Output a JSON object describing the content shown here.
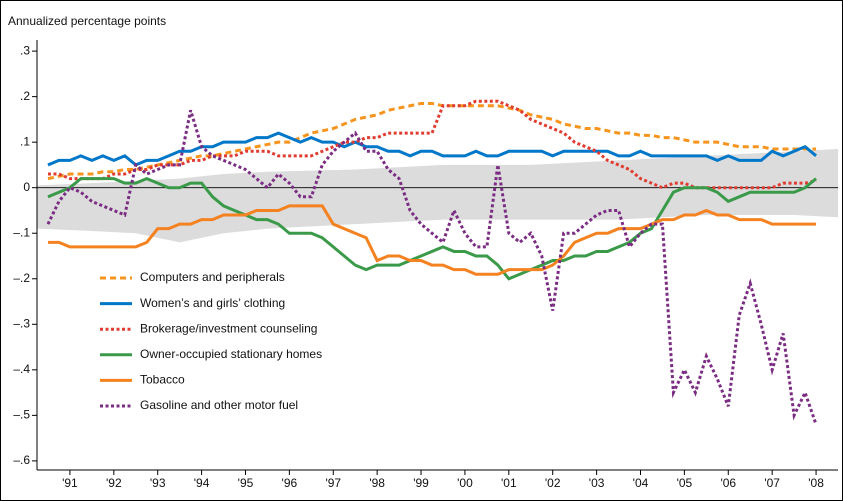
{
  "chart_data": {
    "type": "line",
    "y_label": "Annualized percentage points",
    "x": [
      1991,
      1991.25,
      1991.5,
      1991.75,
      1992,
      1992.25,
      1992.5,
      1992.75,
      1993,
      1993.25,
      1993.5,
      1993.75,
      1994,
      1994.25,
      1994.5,
      1994.75,
      1995,
      1995.25,
      1995.5,
      1995.75,
      1996,
      1996.25,
      1996.5,
      1996.75,
      1997,
      1997.25,
      1997.5,
      1997.75,
      1998,
      1998.25,
      1998.5,
      1998.75,
      1999,
      1999.25,
      1999.5,
      1999.75,
      2000,
      2000.25,
      2000.5,
      2000.75,
      2001,
      2001.25,
      2001.5,
      2001.75,
      2002,
      2002.25,
      2002.5,
      2002.75,
      2003,
      2003.25,
      2003.5,
      2003.75,
      2004,
      2004.25,
      2004.5,
      2004.75,
      2005,
      2005.25,
      2005.5,
      2005.75,
      2006,
      2006.25,
      2006.5,
      2006.75,
      2007,
      2007.25,
      2007.5,
      2007.75,
      2008,
      2008.25,
      2008.5
    ],
    "series": [
      {
        "name": "Computers and peripherals",
        "color": "#f7941d",
        "style": "dashed",
        "values": [
          0.02,
          0.025,
          0.03,
          0.03,
          0.03,
          0.035,
          0.035,
          0.04,
          0.04,
          0.045,
          0.05,
          0.055,
          0.06,
          0.065,
          0.07,
          0.07,
          0.075,
          0.08,
          0.085,
          0.09,
          0.095,
          0.1,
          0.1,
          0.11,
          0.12,
          0.125,
          0.13,
          0.14,
          0.15,
          0.155,
          0.16,
          0.17,
          0.175,
          0.18,
          0.185,
          0.185,
          0.18,
          0.18,
          0.18,
          0.18,
          0.18,
          0.18,
          0.175,
          0.17,
          0.16,
          0.155,
          0.15,
          0.14,
          0.135,
          0.13,
          0.13,
          0.125,
          0.12,
          0.12,
          0.115,
          0.115,
          0.11,
          0.11,
          0.105,
          0.1,
          0.1,
          0.1,
          0.095,
          0.09,
          0.09,
          0.09,
          0.085,
          0.085,
          0.085,
          0.085,
          0.085
        ]
      },
      {
        "name": "Women’s and girls’ clothing",
        "color": "#0077c8",
        "style": "solid",
        "values": [
          0.05,
          0.06,
          0.06,
          0.07,
          0.06,
          0.07,
          0.06,
          0.07,
          0.05,
          0.06,
          0.06,
          0.07,
          0.08,
          0.08,
          0.09,
          0.09,
          0.1,
          0.1,
          0.1,
          0.11,
          0.11,
          0.12,
          0.11,
          0.1,
          0.11,
          0.1,
          0.1,
          0.09,
          0.1,
          0.09,
          0.09,
          0.08,
          0.08,
          0.07,
          0.08,
          0.08,
          0.07,
          0.07,
          0.07,
          0.08,
          0.07,
          0.07,
          0.08,
          0.08,
          0.08,
          0.08,
          0.07,
          0.08,
          0.08,
          0.08,
          0.08,
          0.08,
          0.07,
          0.07,
          0.08,
          0.07,
          0.07,
          0.07,
          0.07,
          0.07,
          0.07,
          0.06,
          0.07,
          0.06,
          0.06,
          0.06,
          0.08,
          0.07,
          0.08,
          0.09,
          0.07
        ]
      },
      {
        "name": "Brokerage/investment counseling",
        "color": "#e03c31",
        "style": "dotted",
        "values": [
          0.03,
          0.03,
          0.02,
          0.02,
          0.02,
          0.02,
          0.03,
          0.03,
          0.04,
          0.04,
          0.05,
          0.05,
          0.05,
          0.06,
          0.06,
          0.07,
          0.07,
          0.07,
          0.08,
          0.08,
          0.08,
          0.07,
          0.07,
          0.07,
          0.07,
          0.08,
          0.09,
          0.1,
          0.1,
          0.11,
          0.11,
          0.12,
          0.12,
          0.12,
          0.12,
          0.12,
          0.18,
          0.18,
          0.18,
          0.19,
          0.19,
          0.19,
          0.18,
          0.17,
          0.15,
          0.14,
          0.13,
          0.12,
          0.1,
          0.09,
          0.08,
          0.06,
          0.05,
          0.04,
          0.02,
          0.01,
          0,
          0.01,
          0.01,
          0,
          0,
          0,
          0,
          0,
          0,
          0,
          0,
          0.01,
          0.01,
          0.01,
          0.015
        ]
      },
      {
        "name": "Owner-occupied stationary homes",
        "color": "#3a9a4a",
        "style": "solid",
        "values": [
          -0.02,
          -0.01,
          0,
          0.02,
          0.02,
          0.02,
          0.02,
          0.01,
          0.01,
          0.02,
          0.01,
          0,
          0,
          0.01,
          0.01,
          -0.02,
          -0.04,
          -0.05,
          -0.06,
          -0.07,
          -0.07,
          -0.08,
          -0.1,
          -0.1,
          -0.1,
          -0.11,
          -0.13,
          -0.15,
          -0.17,
          -0.18,
          -0.17,
          -0.17,
          -0.17,
          -0.16,
          -0.15,
          -0.14,
          -0.13,
          -0.14,
          -0.14,
          -0.15,
          -0.15,
          -0.17,
          -0.2,
          -0.19,
          -0.18,
          -0.17,
          -0.16,
          -0.16,
          -0.15,
          -0.15,
          -0.14,
          -0.14,
          -0.13,
          -0.12,
          -0.1,
          -0.09,
          -0.05,
          -0.01,
          0,
          0,
          0,
          -0.01,
          -0.03,
          -0.02,
          -0.01,
          -0.01,
          -0.01,
          -0.01,
          -0.01,
          0,
          0.02
        ]
      },
      {
        "name": "Tobacco",
        "color": "#f58220",
        "style": "solid",
        "values": [
          -0.12,
          -0.12,
          -0.13,
          -0.13,
          -0.13,
          -0.13,
          -0.13,
          -0.13,
          -0.13,
          -0.12,
          -0.09,
          -0.09,
          -0.08,
          -0.08,
          -0.07,
          -0.07,
          -0.06,
          -0.06,
          -0.06,
          -0.05,
          -0.05,
          -0.05,
          -0.04,
          -0.04,
          -0.04,
          -0.04,
          -0.08,
          -0.09,
          -0.1,
          -0.11,
          -0.16,
          -0.15,
          -0.15,
          -0.16,
          -0.16,
          -0.17,
          -0.17,
          -0.18,
          -0.18,
          -0.19,
          -0.19,
          -0.19,
          -0.18,
          -0.18,
          -0.18,
          -0.18,
          -0.17,
          -0.15,
          -0.12,
          -0.11,
          -0.1,
          -0.1,
          -0.09,
          -0.09,
          -0.09,
          -0.08,
          -0.07,
          -0.07,
          -0.06,
          -0.06,
          -0.05,
          -0.06,
          -0.06,
          -0.07,
          -0.07,
          -0.07,
          -0.08,
          -0.08,
          -0.08,
          -0.08,
          -0.08
        ]
      },
      {
        "name": "Gasoline and other motor fuel",
        "color": "#7b2c83",
        "style": "dotted",
        "values": [
          -0.08,
          -0.03,
          0,
          -0.01,
          -0.03,
          -0.04,
          -0.05,
          -0.06,
          0.05,
          0.03,
          0.04,
          0.05,
          0.05,
          0.17,
          0.09,
          0.07,
          0.06,
          0.05,
          0.04,
          0.02,
          0,
          0.03,
          0.01,
          -0.02,
          -0.02,
          0.05,
          0.08,
          0.1,
          0.12,
          0.08,
          0.08,
          0.04,
          0.02,
          -0.05,
          -0.08,
          -0.1,
          -0.12,
          -0.05,
          -0.1,
          -0.13,
          -0.13,
          0.05,
          -0.1,
          -0.12,
          -0.1,
          -0.15,
          -0.27,
          -0.1,
          -0.1,
          -0.08,
          -0.06,
          -0.05,
          -0.05,
          -0.13,
          -0.1,
          -0.08,
          -0.08,
          -0.45,
          -0.4,
          -0.45,
          -0.37,
          -0.42,
          -0.48,
          -0.28,
          -0.21,
          -0.3,
          -0.4,
          -0.32,
          -0.5,
          -0.45,
          -0.52
        ]
      }
    ],
    "band": {
      "color": "#dcdcdc",
      "x": [
        1990.75,
        1992,
        1993,
        1994,
        1995,
        1996,
        1998,
        2000,
        2002,
        2004,
        2006,
        2008,
        2009
      ],
      "upper": [
        0.005,
        0.01,
        0.015,
        0.02,
        0.03,
        0.035,
        0.04,
        0.05,
        0.05,
        0.06,
        0.07,
        0.08,
        0.085
      ],
      "lower": [
        -0.09,
        -0.095,
        -0.1,
        -0.12,
        -0.1,
        -0.09,
        -0.08,
        -0.07,
        -0.07,
        -0.07,
        -0.06,
        -0.06,
        -0.065
      ]
    },
    "xlim": [
      1990.75,
      2009
    ],
    "xticks": [
      {
        "value": 1991.5,
        "label": "'91"
      },
      {
        "value": 1992.5,
        "label": "'92"
      },
      {
        "value": 1993.5,
        "label": "'93"
      },
      {
        "value": 1994.5,
        "label": "'94"
      },
      {
        "value": 1995.5,
        "label": "'95"
      },
      {
        "value": 1996.5,
        "label": "'96"
      },
      {
        "value": 1997.5,
        "label": "'97"
      },
      {
        "value": 1998.5,
        "label": "'98"
      },
      {
        "value": 1999.5,
        "label": "'99"
      },
      {
        "value": 2000.5,
        "label": "'00"
      },
      {
        "value": 2001.5,
        "label": "'01"
      },
      {
        "value": 2002.5,
        "label": "'02"
      },
      {
        "value": 2003.5,
        "label": "'03"
      },
      {
        "value": 2004.5,
        "label": "'04"
      },
      {
        "value": 2005.5,
        "label": "'05"
      },
      {
        "value": 2006.5,
        "label": "'06"
      },
      {
        "value": 2007.5,
        "label": "'07"
      },
      {
        "value": 2008.5,
        "label": "'08"
      }
    ],
    "ylim": [
      -0.62,
      0.32
    ],
    "yticks": [
      {
        "value": 0.3,
        "label": ".3"
      },
      {
        "value": 0.2,
        "label": ".2"
      },
      {
        "value": 0.1,
        "label": ".1"
      },
      0,
      {
        "value": -0.1,
        "label": "–.1"
      },
      {
        "value": -0.2,
        "label": "–.2"
      },
      {
        "value": -0.3,
        "label": "–.3"
      },
      {
        "value": -0.4,
        "label": "–.4"
      },
      {
        "value": -0.5,
        "label": "–.5"
      },
      {
        "value": -0.6,
        "label": "–.6"
      }
    ],
    "zero_line": true,
    "legend": "lower-left"
  }
}
